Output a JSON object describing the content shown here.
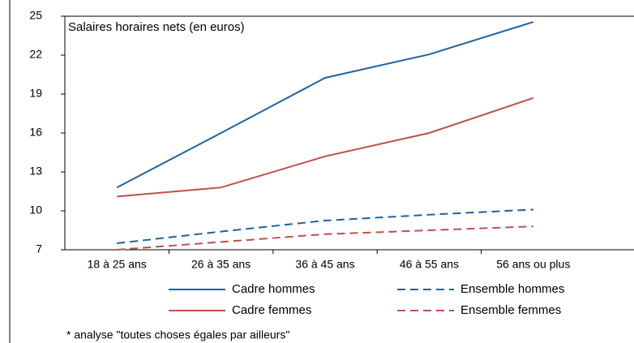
{
  "chart_data": {
    "type": "line",
    "annotation": "Salaires horaires nets (en euros)",
    "footnote": "* analyse \"toutes choses égales par ailleurs\"",
    "categories": [
      "18 à 25 ans",
      "26 à 35 ans",
      "36 à 45 ans",
      "46 à 55 ans",
      "56 ans ou plus"
    ],
    "series": [
      {
        "name": "Cadre hommes",
        "color": "#1f62a0",
        "dashed": false,
        "values": [
          11.8,
          16,
          20.25,
          22.06,
          24.56
        ]
      },
      {
        "name": "Ensemble hommes",
        "color": "#1f62a0",
        "dashed": true,
        "values": [
          7.5,
          8.4,
          9.25,
          9.7,
          10.1
        ]
      },
      {
        "name": "Cadre femmes",
        "color": "#c0504d",
        "dashed": false,
        "values": [
          11.1,
          11.8,
          14.2,
          16,
          18.7
        ]
      },
      {
        "name": "Ensemble femmes",
        "color": "#c0504d",
        "dashed": true,
        "values": [
          7.0,
          7.6,
          8.2,
          8.5,
          8.8
        ]
      }
    ],
    "ylim": [
      7,
      25
    ],
    "yticks": [
      7,
      10,
      13,
      16,
      19,
      22,
      25
    ]
  }
}
